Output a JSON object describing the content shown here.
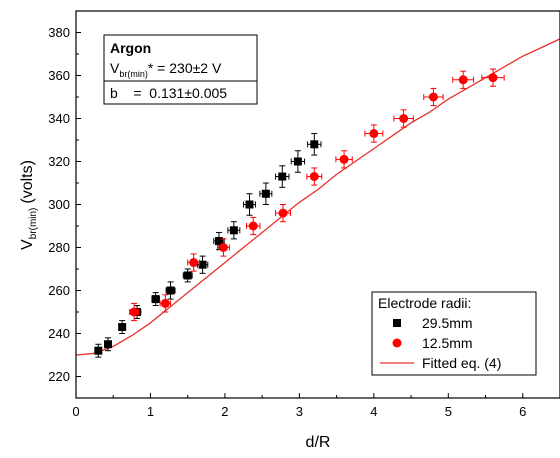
{
  "chart_data": {
    "type": "scatter",
    "xlabel": "d/R",
    "ylabel_main": "V",
    "ylabel_sub": "br(min)",
    "ylabel_unit": "(volts)",
    "xlim": [
      0,
      6.5
    ],
    "ylim": [
      210,
      390
    ],
    "x_ticks": [
      0,
      1,
      2,
      3,
      4,
      5,
      6
    ],
    "y_ticks": [
      220,
      240,
      260,
      280,
      300,
      320,
      340,
      360,
      380
    ],
    "grid": false,
    "annotation": {
      "title": "Argon",
      "line1_main": "V",
      "line1_sub": "br(min)",
      "line1_rest": "* = 230±2 V",
      "line2": "b    =  0.131±0.005"
    },
    "legend": {
      "title": "Electrode radii:",
      "position": "bottom-right"
    },
    "series": [
      {
        "name": "29.5mm",
        "marker": "square",
        "color": "#000000",
        "points": [
          {
            "x": 0.3,
            "y": 232,
            "yerr": 3,
            "xerr": 0.04
          },
          {
            "x": 0.43,
            "y": 235,
            "yerr": 3,
            "xerr": 0.04
          },
          {
            "x": 0.62,
            "y": 243,
            "yerr": 3,
            "xerr": 0.04
          },
          {
            "x": 0.82,
            "y": 250,
            "yerr": 3,
            "xerr": 0.05
          },
          {
            "x": 1.07,
            "y": 256,
            "yerr": 3,
            "xerr": 0.05
          },
          {
            "x": 1.27,
            "y": 260,
            "yerr": 4,
            "xerr": 0.06
          },
          {
            "x": 1.5,
            "y": 267,
            "yerr": 3,
            "xerr": 0.06
          },
          {
            "x": 1.7,
            "y": 272,
            "yerr": 4,
            "xerr": 0.07
          },
          {
            "x": 1.92,
            "y": 283,
            "yerr": 4,
            "xerr": 0.07
          },
          {
            "x": 2.12,
            "y": 288,
            "yerr": 4,
            "xerr": 0.08
          },
          {
            "x": 2.33,
            "y": 300,
            "yerr": 5,
            "xerr": 0.08
          },
          {
            "x": 2.55,
            "y": 305,
            "yerr": 5,
            "xerr": 0.08
          },
          {
            "x": 2.77,
            "y": 313,
            "yerr": 5,
            "xerr": 0.09
          },
          {
            "x": 2.98,
            "y": 320,
            "yerr": 5,
            "xerr": 0.09
          },
          {
            "x": 3.2,
            "y": 328,
            "yerr": 5,
            "xerr": 0.09
          }
        ]
      },
      {
        "name": "12.5mm",
        "marker": "circle",
        "color": "#ff0000",
        "points": [
          {
            "x": 0.78,
            "y": 250,
            "yerr": 4,
            "xerr": 0.06
          },
          {
            "x": 1.2,
            "y": 254,
            "yerr": 4,
            "xerr": 0.07
          },
          {
            "x": 1.58,
            "y": 273,
            "yerr": 4,
            "xerr": 0.08
          },
          {
            "x": 1.98,
            "y": 280,
            "yerr": 4,
            "xerr": 0.08
          },
          {
            "x": 2.38,
            "y": 290,
            "yerr": 4,
            "xerr": 0.09
          },
          {
            "x": 2.78,
            "y": 296,
            "yerr": 4,
            "xerr": 0.1
          },
          {
            "x": 3.2,
            "y": 313,
            "yerr": 4,
            "xerr": 0.1
          },
          {
            "x": 3.6,
            "y": 321,
            "yerr": 4,
            "xerr": 0.11
          },
          {
            "x": 4.0,
            "y": 333,
            "yerr": 4,
            "xerr": 0.12
          },
          {
            "x": 4.4,
            "y": 340,
            "yerr": 4,
            "xerr": 0.13
          },
          {
            "x": 4.8,
            "y": 350,
            "yerr": 4,
            "xerr": 0.13
          },
          {
            "x": 5.2,
            "y": 358,
            "yerr": 4,
            "xerr": 0.14
          },
          {
            "x": 5.6,
            "y": 359,
            "yerr": 4,
            "xerr": 0.15
          }
        ]
      },
      {
        "name": "Fitted eq. (4)",
        "marker": "line",
        "color": "#e8302a",
        "points": [
          {
            "x": 0.0,
            "y": 230
          },
          {
            "x": 0.25,
            "y": 230.8
          },
          {
            "x": 0.5,
            "y": 234
          },
          {
            "x": 0.75,
            "y": 239
          },
          {
            "x": 1.0,
            "y": 245
          },
          {
            "x": 1.25,
            "y": 252
          },
          {
            "x": 1.5,
            "y": 259
          },
          {
            "x": 1.75,
            "y": 266
          },
          {
            "x": 2.0,
            "y": 273
          },
          {
            "x": 2.25,
            "y": 280
          },
          {
            "x": 2.5,
            "y": 287
          },
          {
            "x": 2.75,
            "y": 294
          },
          {
            "x": 3.0,
            "y": 301
          },
          {
            "x": 3.25,
            "y": 307
          },
          {
            "x": 3.5,
            "y": 314
          },
          {
            "x": 3.75,
            "y": 320
          },
          {
            "x": 4.0,
            "y": 326
          },
          {
            "x": 4.25,
            "y": 332
          },
          {
            "x": 4.5,
            "y": 338
          },
          {
            "x": 4.75,
            "y": 343
          },
          {
            "x": 5.0,
            "y": 349
          },
          {
            "x": 5.25,
            "y": 354
          },
          {
            "x": 5.5,
            "y": 359
          },
          {
            "x": 5.75,
            "y": 364
          },
          {
            "x": 6.0,
            "y": 369
          },
          {
            "x": 6.25,
            "y": 373
          },
          {
            "x": 6.5,
            "y": 377
          }
        ]
      }
    ]
  }
}
